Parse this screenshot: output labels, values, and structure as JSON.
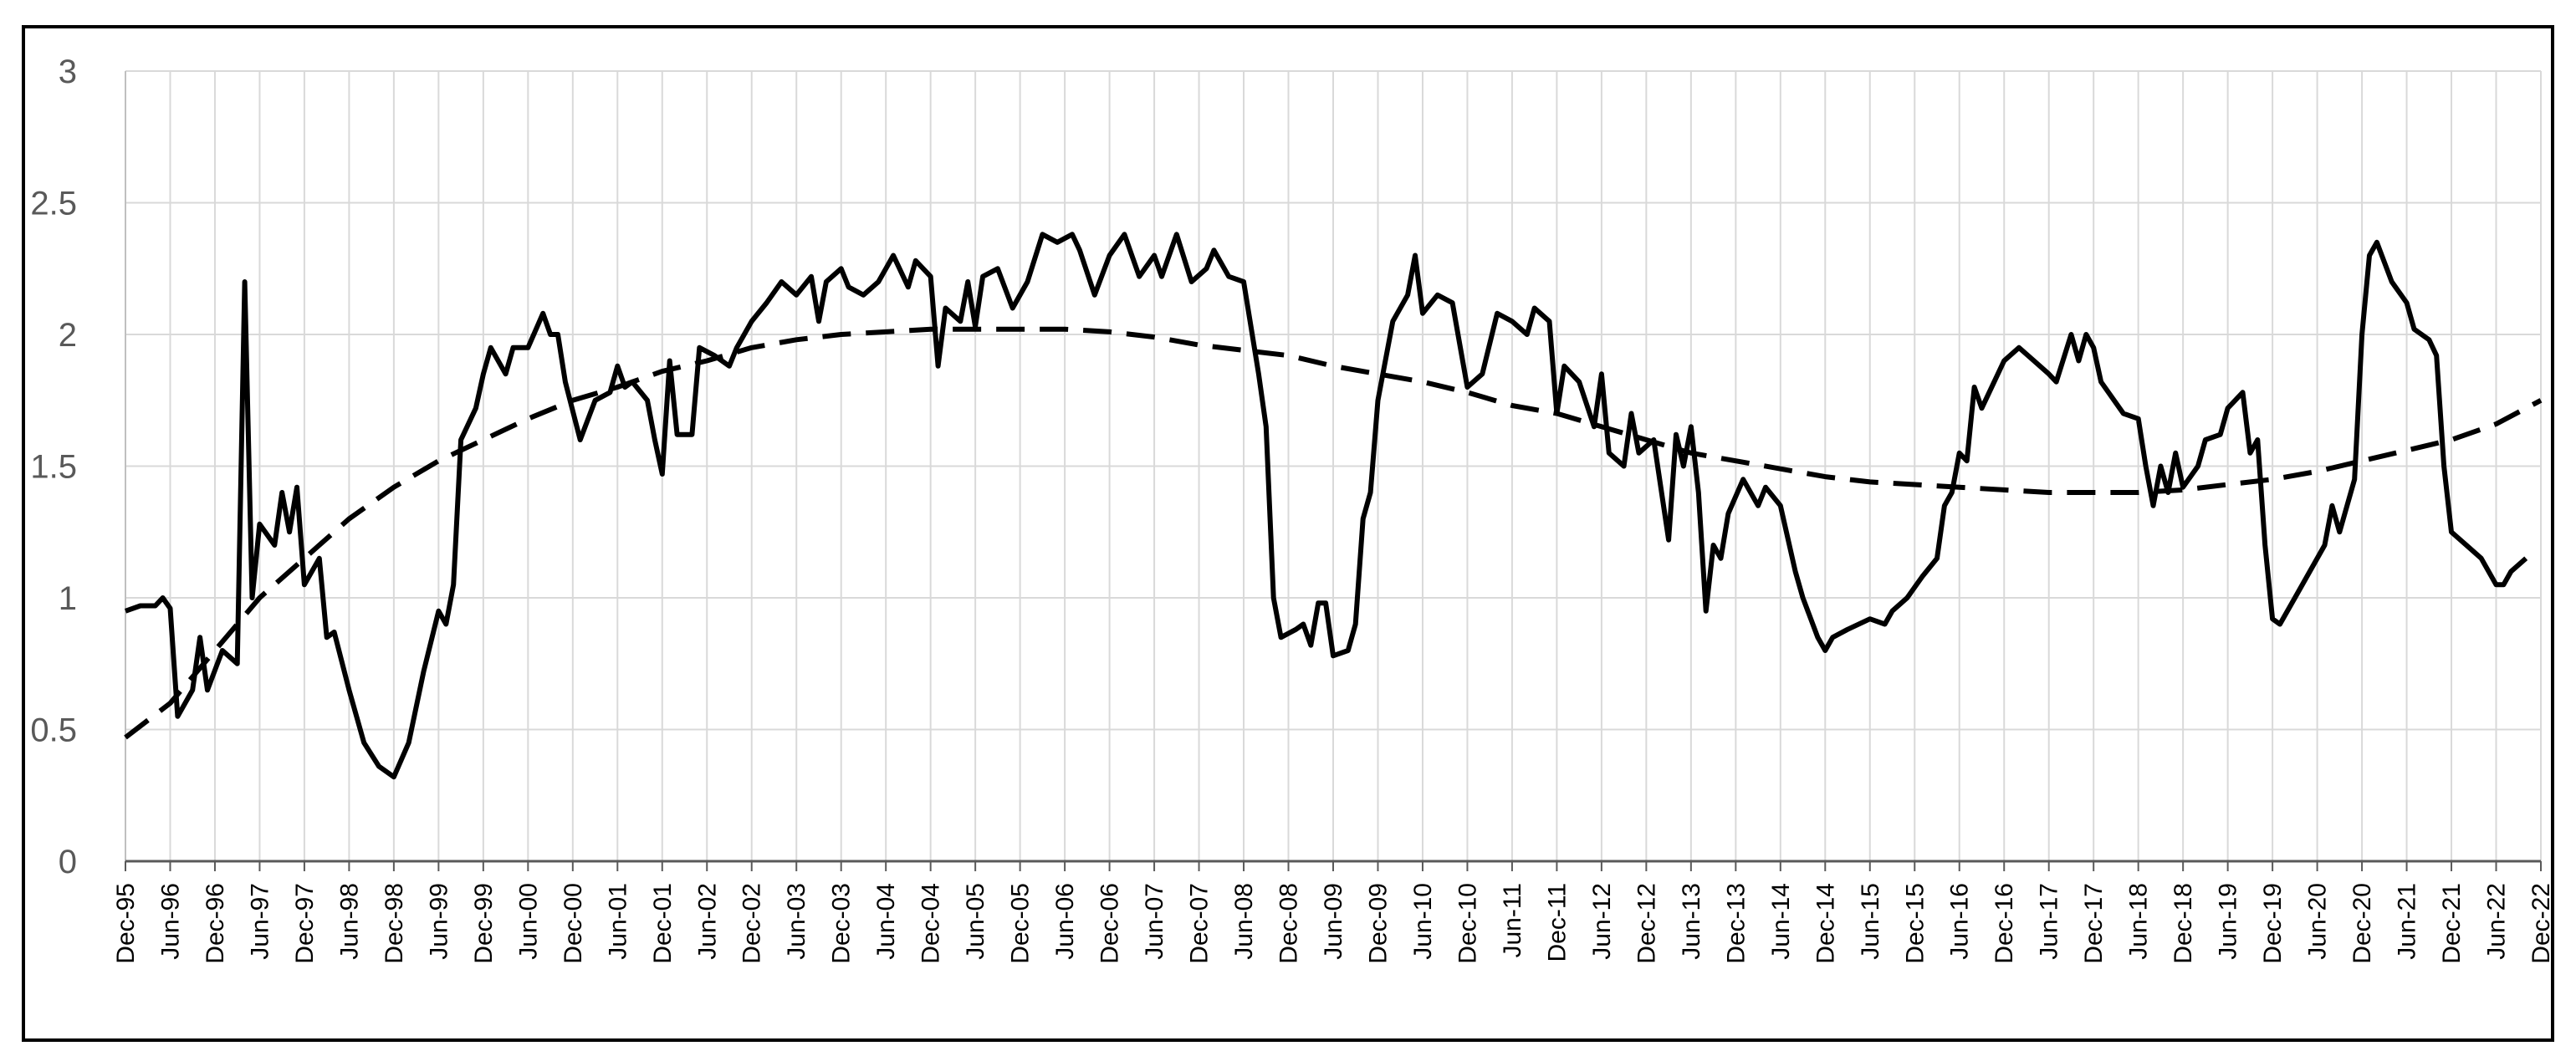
{
  "chart_data": {
    "type": "line",
    "title": "",
    "xlabel": "",
    "ylabel": "",
    "ylim": [
      0,
      3
    ],
    "yticks": [
      0,
      0.5,
      1,
      1.5,
      2,
      2.5,
      3
    ],
    "ytick_labels": [
      "0",
      "0.5",
      "1",
      "1.5",
      "2",
      "2.5",
      "3"
    ],
    "xlim": [
      "Dec-95",
      "Dec-22"
    ],
    "xtick_labels": [
      "Dec-95",
      "Jun-96",
      "Dec-96",
      "Jun-97",
      "Dec-97",
      "Jun-98",
      "Dec-98",
      "Jun-99",
      "Dec-99",
      "Jun-00",
      "Dec-00",
      "Jun-01",
      "Dec-01",
      "Jun-02",
      "Dec-02",
      "Jun-03",
      "Dec-03",
      "Jun-04",
      "Dec-04",
      "Jun-05",
      "Dec-05",
      "Jun-06",
      "Dec-06",
      "Jun-07",
      "Dec-07",
      "Jun-08",
      "Dec-08",
      "Jun-09",
      "Dec-09",
      "Jun-10",
      "Dec-10",
      "Jun-11",
      "Dec-11",
      "Jun-12",
      "Dec-12",
      "Jun-13",
      "Dec-13",
      "Jun-14",
      "Dec-14",
      "Jun-15",
      "Dec-15",
      "Jun-16",
      "Dec-16",
      "Jun-17",
      "Dec-17",
      "Jun-18",
      "Dec-18",
      "Jun-19",
      "Dec-19",
      "Jun-20",
      "Dec-20",
      "Jun-21",
      "Dec-21",
      "Jun-22",
      "Dec-22"
    ],
    "grid": true,
    "legend": "none",
    "series": [
      {
        "style": "solid",
        "color": "#000000",
        "points": [
          [
            "Dec-95",
            0.95
          ],
          [
            "Feb-96",
            0.97
          ],
          [
            "Apr-96",
            0.97
          ],
          [
            "May-96",
            1.0
          ],
          [
            "Jun-96",
            0.96
          ],
          [
            "Jul-96",
            0.55
          ],
          [
            "Sep-96",
            0.65
          ],
          [
            "Oct-96",
            0.85
          ],
          [
            "Nov-96",
            0.65
          ],
          [
            "Jan-97",
            0.8
          ],
          [
            "Mar-97",
            0.75
          ],
          [
            "Apr-97",
            2.2
          ],
          [
            "May-97",
            1.0
          ],
          [
            "Jun-97",
            1.28
          ],
          [
            "Aug-97",
            1.2
          ],
          [
            "Sep-97",
            1.4
          ],
          [
            "Oct-97",
            1.25
          ],
          [
            "Nov-97",
            1.42
          ],
          [
            "Dec-97",
            1.05
          ],
          [
            "Feb-98",
            1.15
          ],
          [
            "Mar-98",
            0.85
          ],
          [
            "Apr-98",
            0.87
          ],
          [
            "Jun-98",
            0.65
          ],
          [
            "Aug-98",
            0.45
          ],
          [
            "Oct-98",
            0.36
          ],
          [
            "Dec-98",
            0.32
          ],
          [
            "Feb-99",
            0.45
          ],
          [
            "Apr-99",
            0.72
          ],
          [
            "Jun-99",
            0.95
          ],
          [
            "Jul-99",
            0.9
          ],
          [
            "Aug-99",
            1.05
          ],
          [
            "Sep-99",
            1.6
          ],
          [
            "Nov-99",
            1.72
          ],
          [
            "Dec-99",
            1.85
          ],
          [
            "Jan-00",
            1.95
          ],
          [
            "Mar-00",
            1.85
          ],
          [
            "Apr-00",
            1.95
          ],
          [
            "Jun-00",
            1.95
          ],
          [
            "Aug-00",
            2.08
          ],
          [
            "Sep-00",
            2.0
          ],
          [
            "Oct-00",
            2.0
          ],
          [
            "Nov-00",
            1.82
          ],
          [
            "Jan-01",
            1.6
          ],
          [
            "Mar-01",
            1.75
          ],
          [
            "May-01",
            1.78
          ],
          [
            "Jun-01",
            1.88
          ],
          [
            "Jul-01",
            1.8
          ],
          [
            "Aug-01",
            1.82
          ],
          [
            "Oct-01",
            1.75
          ],
          [
            "Nov-01",
            1.6
          ],
          [
            "Dec-01",
            1.47
          ],
          [
            "Jan-02",
            1.9
          ],
          [
            "Feb-02",
            1.62
          ],
          [
            "Apr-02",
            1.62
          ],
          [
            "May-02",
            1.95
          ],
          [
            "Jul-02",
            1.92
          ],
          [
            "Sep-02",
            1.88
          ],
          [
            "Oct-02",
            1.95
          ],
          [
            "Dec-02",
            2.05
          ],
          [
            "Feb-03",
            2.12
          ],
          [
            "Apr-03",
            2.2
          ],
          [
            "Jun-03",
            2.15
          ],
          [
            "Aug-03",
            2.22
          ],
          [
            "Sep-03",
            2.05
          ],
          [
            "Oct-03",
            2.2
          ],
          [
            "Dec-03",
            2.25
          ],
          [
            "Jan-04",
            2.18
          ],
          [
            "Mar-04",
            2.15
          ],
          [
            "May-04",
            2.2
          ],
          [
            "Jun-04",
            2.25
          ],
          [
            "Jul-04",
            2.3
          ],
          [
            "Sep-04",
            2.18
          ],
          [
            "Oct-04",
            2.28
          ],
          [
            "Dec-04",
            2.22
          ],
          [
            "Jan-05",
            1.88
          ],
          [
            "Feb-05",
            2.1
          ],
          [
            "Apr-05",
            2.05
          ],
          [
            "May-05",
            2.2
          ],
          [
            "Jun-05",
            2.03
          ],
          [
            "Jul-05",
            2.22
          ],
          [
            "Sep-05",
            2.25
          ],
          [
            "Nov-05",
            2.1
          ],
          [
            "Jan-06",
            2.2
          ],
          [
            "Mar-06",
            2.38
          ],
          [
            "May-06",
            2.35
          ],
          [
            "Jul-06",
            2.38
          ],
          [
            "Aug-06",
            2.32
          ],
          [
            "Oct-06",
            2.15
          ],
          [
            "Dec-06",
            2.3
          ],
          [
            "Feb-07",
            2.38
          ],
          [
            "Apr-07",
            2.22
          ],
          [
            "Jun-07",
            2.3
          ],
          [
            "Jul-07",
            2.22
          ],
          [
            "Sep-07",
            2.38
          ],
          [
            "Nov-07",
            2.2
          ],
          [
            "Jan-08",
            2.25
          ],
          [
            "Feb-08",
            2.32
          ],
          [
            "Apr-08",
            2.22
          ],
          [
            "Jun-08",
            2.2
          ],
          [
            "Aug-08",
            1.85
          ],
          [
            "Sep-08",
            1.65
          ],
          [
            "Oct-08",
            1.0
          ],
          [
            "Nov-08",
            0.85
          ],
          [
            "Jan-09",
            0.88
          ],
          [
            "Feb-09",
            0.9
          ],
          [
            "Mar-09",
            0.82
          ],
          [
            "Apr-09",
            0.98
          ],
          [
            "May-09",
            0.98
          ],
          [
            "Jun-09",
            0.78
          ],
          [
            "Aug-09",
            0.8
          ],
          [
            "Sep-09",
            0.9
          ],
          [
            "Oct-09",
            1.3
          ],
          [
            "Nov-09",
            1.4
          ],
          [
            "Dec-09",
            1.75
          ],
          [
            "Feb-10",
            2.05
          ],
          [
            "Apr-10",
            2.15
          ],
          [
            "May-10",
            2.3
          ],
          [
            "Jun-10",
            2.08
          ],
          [
            "Aug-10",
            2.15
          ],
          [
            "Oct-10",
            2.12
          ],
          [
            "Dec-10",
            1.8
          ],
          [
            "Feb-11",
            1.85
          ],
          [
            "Apr-11",
            2.08
          ],
          [
            "Jun-11",
            2.05
          ],
          [
            "Aug-11",
            2.0
          ],
          [
            "Sep-11",
            2.1
          ],
          [
            "Nov-11",
            2.05
          ],
          [
            "Dec-11",
            1.7
          ],
          [
            "Jan-12",
            1.88
          ],
          [
            "Mar-12",
            1.82
          ],
          [
            "May-12",
            1.65
          ],
          [
            "Jun-12",
            1.85
          ],
          [
            "Jul-12",
            1.55
          ],
          [
            "Sep-12",
            1.5
          ],
          [
            "Oct-12",
            1.7
          ],
          [
            "Nov-12",
            1.55
          ],
          [
            "Jan-13",
            1.6
          ],
          [
            "Mar-13",
            1.22
          ],
          [
            "Apr-13",
            1.62
          ],
          [
            "May-13",
            1.5
          ],
          [
            "Jun-13",
            1.65
          ],
          [
            "Jul-13",
            1.4
          ],
          [
            "Aug-13",
            0.95
          ],
          [
            "Sep-13",
            1.2
          ],
          [
            "Oct-13",
            1.15
          ],
          [
            "Nov-13",
            1.32
          ],
          [
            "Jan-14",
            1.45
          ],
          [
            "Mar-14",
            1.35
          ],
          [
            "Apr-14",
            1.42
          ],
          [
            "Jun-14",
            1.35
          ],
          [
            "Aug-14",
            1.1
          ],
          [
            "Sep-14",
            1.0
          ],
          [
            "Nov-14",
            0.85
          ],
          [
            "Dec-14",
            0.8
          ],
          [
            "Jan-15",
            0.85
          ],
          [
            "Mar-15",
            0.88
          ],
          [
            "Jun-15",
            0.92
          ],
          [
            "Aug-15",
            0.9
          ],
          [
            "Sep-15",
            0.95
          ],
          [
            "Nov-15",
            1.0
          ],
          [
            "Jan-16",
            1.08
          ],
          [
            "Mar-16",
            1.15
          ],
          [
            "Apr-16",
            1.35
          ],
          [
            "May-16",
            1.4
          ],
          [
            "Jun-16",
            1.55
          ],
          [
            "Jul-16",
            1.52
          ],
          [
            "Aug-16",
            1.8
          ],
          [
            "Sep-16",
            1.72
          ],
          [
            "Oct-16",
            1.78
          ],
          [
            "Dec-16",
            1.9
          ],
          [
            "Feb-17",
            1.95
          ],
          [
            "Apr-17",
            1.9
          ],
          [
            "Jun-17",
            1.85
          ],
          [
            "Jul-17",
            1.82
          ],
          [
            "Sep-17",
            2.0
          ],
          [
            "Oct-17",
            1.9
          ],
          [
            "Nov-17",
            2.0
          ],
          [
            "Dec-17",
            1.95
          ],
          [
            "Jan-18",
            1.82
          ],
          [
            "Apr-18",
            1.7
          ],
          [
            "Jun-18",
            1.68
          ],
          [
            "Jul-18",
            1.5
          ],
          [
            "Aug-18",
            1.35
          ],
          [
            "Sep-18",
            1.5
          ],
          [
            "Oct-18",
            1.4
          ],
          [
            "Nov-18",
            1.55
          ],
          [
            "Dec-18",
            1.42
          ],
          [
            "Feb-19",
            1.5
          ],
          [
            "Mar-19",
            1.6
          ],
          [
            "May-19",
            1.62
          ],
          [
            "Jun-19",
            1.72
          ],
          [
            "Aug-19",
            1.78
          ],
          [
            "Sep-19",
            1.55
          ],
          [
            "Oct-19",
            1.6
          ],
          [
            "Nov-19",
            1.2
          ],
          [
            "Dec-19",
            0.92
          ],
          [
            "Jan-20",
            0.9
          ],
          [
            "Mar-20",
            1.0
          ],
          [
            "May-20",
            1.1
          ],
          [
            "Jul-20",
            1.2
          ],
          [
            "Aug-20",
            1.35
          ],
          [
            "Sep-20",
            1.25
          ],
          [
            "Nov-20",
            1.45
          ],
          [
            "Dec-20",
            2.0
          ],
          [
            "Jan-21",
            2.3
          ],
          [
            "Feb-21",
            2.35
          ],
          [
            "Apr-21",
            2.2
          ],
          [
            "Jun-21",
            2.12
          ],
          [
            "Jul-21",
            2.02
          ],
          [
            "Sep-21",
            1.98
          ],
          [
            "Oct-21",
            1.92
          ],
          [
            "Nov-21",
            1.5
          ],
          [
            "Dec-21",
            1.25
          ],
          [
            "Feb-22",
            1.2
          ],
          [
            "Apr-22",
            1.15
          ],
          [
            "Jun-22",
            1.05
          ],
          [
            "Jul-22",
            1.05
          ],
          [
            "Aug-22",
            1.1
          ],
          [
            "Oct-22",
            1.15
          ]
        ]
      },
      {
        "style": "dashed",
        "color": "#000000",
        "points": [
          [
            "Dec-95",
            0.47
          ],
          [
            "Jun-96",
            0.6
          ],
          [
            "Dec-96",
            0.8
          ],
          [
            "Jun-97",
            1.0
          ],
          [
            "Dec-97",
            1.15
          ],
          [
            "Jun-98",
            1.3
          ],
          [
            "Dec-98",
            1.42
          ],
          [
            "Jun-99",
            1.52
          ],
          [
            "Dec-99",
            1.6
          ],
          [
            "Jun-00",
            1.68
          ],
          [
            "Dec-00",
            1.75
          ],
          [
            "Jun-01",
            1.8
          ],
          [
            "Dec-01",
            1.86
          ],
          [
            "Jun-02",
            1.9
          ],
          [
            "Dec-02",
            1.95
          ],
          [
            "Jun-03",
            1.98
          ],
          [
            "Dec-03",
            2.0
          ],
          [
            "Jun-04",
            2.01
          ],
          [
            "Dec-04",
            2.02
          ],
          [
            "Jun-05",
            2.02
          ],
          [
            "Dec-05",
            2.02
          ],
          [
            "Jun-06",
            2.02
          ],
          [
            "Dec-06",
            2.01
          ],
          [
            "Jun-07",
            1.99
          ],
          [
            "Dec-07",
            1.96
          ],
          [
            "Jun-08",
            1.94
          ],
          [
            "Dec-08",
            1.92
          ],
          [
            "Jun-09",
            1.88
          ],
          [
            "Dec-09",
            1.85
          ],
          [
            "Jun-10",
            1.82
          ],
          [
            "Dec-10",
            1.78
          ],
          [
            "Jun-11",
            1.73
          ],
          [
            "Dec-11",
            1.7
          ],
          [
            "Jun-12",
            1.65
          ],
          [
            "Dec-12",
            1.6
          ],
          [
            "Jun-13",
            1.55
          ],
          [
            "Dec-13",
            1.52
          ],
          [
            "Jun-14",
            1.49
          ],
          [
            "Dec-14",
            1.46
          ],
          [
            "Jun-15",
            1.44
          ],
          [
            "Dec-15",
            1.43
          ],
          [
            "Jun-16",
            1.42
          ],
          [
            "Dec-16",
            1.41
          ],
          [
            "Jun-17",
            1.4
          ],
          [
            "Dec-17",
            1.4
          ],
          [
            "Jun-18",
            1.4
          ],
          [
            "Dec-18",
            1.41
          ],
          [
            "Jun-19",
            1.43
          ],
          [
            "Dec-19",
            1.45
          ],
          [
            "Jun-20",
            1.48
          ],
          [
            "Dec-20",
            1.52
          ],
          [
            "Jun-21",
            1.56
          ],
          [
            "Dec-21",
            1.6
          ],
          [
            "Jun-22",
            1.66
          ],
          [
            "Dec-22",
            1.75
          ]
        ]
      }
    ]
  }
}
